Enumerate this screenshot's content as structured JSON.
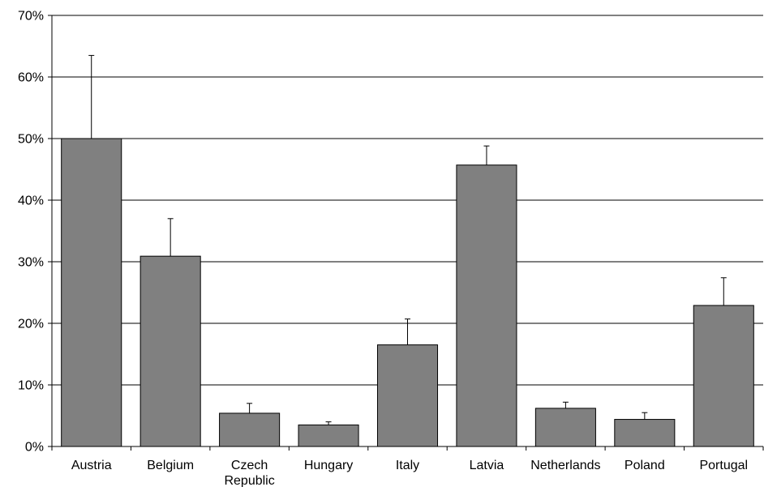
{
  "chart_data": {
    "type": "bar",
    "title": "",
    "xlabel": "",
    "ylabel": "",
    "categories": [
      "Austria",
      "Belgium",
      "Czech Republic",
      "Hungary",
      "Italy",
      "Latvia",
      "Netherlands",
      "Poland",
      "Portugal"
    ],
    "category_lines": [
      [
        "Austria"
      ],
      [
        "Belgium"
      ],
      [
        "Czech",
        "Republic"
      ],
      [
        "Hungary"
      ],
      [
        "Italy"
      ],
      [
        "Latvia"
      ],
      [
        "Netherlands"
      ],
      [
        "Poland"
      ],
      [
        "Portugal"
      ]
    ],
    "series": [
      {
        "values": [
          50.0,
          30.9,
          5.4,
          3.5,
          16.5,
          45.7,
          6.2,
          4.4,
          22.9
        ],
        "error_upper": [
          13.5,
          6.1,
          1.6,
          0.5,
          4.2,
          3.1,
          1.0,
          1.1,
          4.5
        ]
      }
    ],
    "ylim": [
      0,
      70
    ],
    "yticks": [
      0,
      10,
      20,
      30,
      40,
      50,
      60,
      70
    ],
    "ytick_labels": [
      "0%",
      "10%",
      "20%",
      "30%",
      "40%",
      "50%",
      "60%",
      "70%"
    ],
    "grid": true,
    "legend": "none",
    "colors": {
      "bar_fill": "#808080",
      "bar_stroke": "#000000",
      "grid": "#000000",
      "axis": "#000000"
    }
  }
}
